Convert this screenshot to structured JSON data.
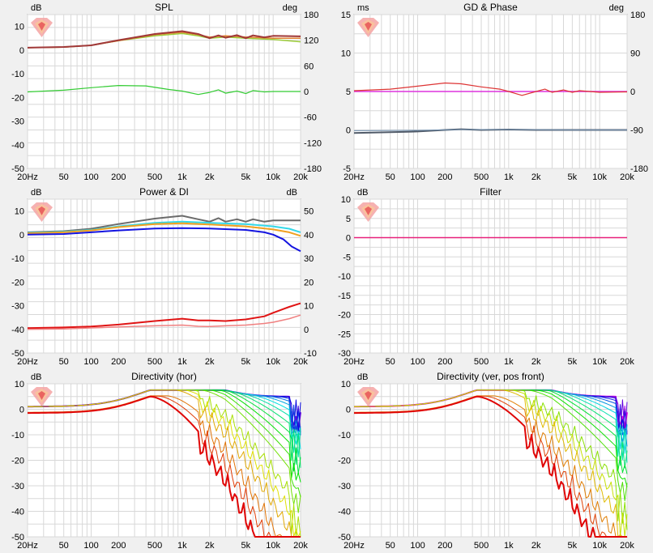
{
  "x_ticks": [
    "20Hz",
    "50",
    "100",
    "200",
    "500",
    "1k",
    "2k",
    "5k",
    "10k",
    "20k"
  ],
  "logo_colors": [
    "#f4a3a3",
    "#f9c49b",
    "#e85a5a"
  ],
  "chart_data": [
    {
      "id": "spl",
      "type": "line",
      "title": "SPL",
      "ylabel": "dB",
      "y2label": "deg",
      "xlim": [
        20,
        20000
      ],
      "xscale": "log",
      "ylim": [
        -50,
        15
      ],
      "y_ticks": [
        10,
        0,
        -10,
        -20,
        -30,
        -40,
        -50
      ],
      "y2lim": [
        -180,
        180
      ],
      "y2_ticks": [
        180,
        120,
        60,
        0,
        -60,
        -120,
        -180
      ],
      "grid": true,
      "series": [
        {
          "color": "#9ccc3a",
          "width": 1.5,
          "values": [
            [
              20,
              1
            ],
            [
              50,
              1.2
            ],
            [
              100,
              2
            ],
            [
              200,
              4
            ],
            [
              500,
              6
            ],
            [
              1000,
              7
            ],
            [
              1500,
              6
            ],
            [
              2000,
              5
            ],
            [
              3000,
              5.5
            ],
            [
              5000,
              5
            ],
            [
              10000,
              4.5
            ],
            [
              20000,
              3.5
            ]
          ]
        },
        {
          "color": "#e08030",
          "width": 1.5,
          "values": [
            [
              20,
              1
            ],
            [
              50,
              1.2
            ],
            [
              100,
              2
            ],
            [
              200,
              4
            ],
            [
              500,
              6.5
            ],
            [
              1000,
              7.5
            ],
            [
              1500,
              6.5
            ],
            [
              2000,
              5.5
            ],
            [
              3000,
              6
            ],
            [
              5000,
              5.5
            ],
            [
              10000,
              5
            ],
            [
              20000,
              5
            ]
          ]
        },
        {
          "color": "#a03838",
          "width": 2,
          "values": [
            [
              20,
              1
            ],
            [
              50,
              1.3
            ],
            [
              100,
              2
            ],
            [
              200,
              4.2
            ],
            [
              500,
              6.8
            ],
            [
              1000,
              8
            ],
            [
              1500,
              6.8
            ],
            [
              2000,
              5
            ],
            [
              2500,
              6.2
            ],
            [
              3000,
              5.2
            ],
            [
              4000,
              6.3
            ],
            [
              5000,
              5
            ],
            [
              6000,
              6.2
            ],
            [
              8000,
              5.4
            ],
            [
              10000,
              6
            ],
            [
              20000,
              5.8
            ]
          ]
        },
        {
          "color": "#33cc33",
          "width": 1.2,
          "axis": "right",
          "values": [
            [
              20,
              -1
            ],
            [
              50,
              3
            ],
            [
              100,
              9
            ],
            [
              200,
              14
            ],
            [
              400,
              13
            ],
            [
              700,
              5
            ],
            [
              1000,
              1
            ],
            [
              1500,
              -7
            ],
            [
              2000,
              -2
            ],
            [
              2500,
              4
            ],
            [
              3000,
              -4
            ],
            [
              4000,
              1
            ],
            [
              5000,
              -5
            ],
            [
              6000,
              2
            ],
            [
              8000,
              -1
            ],
            [
              10000,
              0
            ],
            [
              20000,
              0
            ]
          ]
        }
      ]
    },
    {
      "id": "gd",
      "type": "line",
      "title": "GD & Phase",
      "ylabel": "ms",
      "y2label": "deg",
      "xlim": [
        20,
        20000
      ],
      "xscale": "log",
      "ylim": [
        -5,
        15
      ],
      "y_ticks": [
        15,
        10,
        5,
        0,
        -5
      ],
      "y2lim": [
        -180,
        180
      ],
      "y2_ticks": [
        180,
        90,
        0,
        -90,
        -180
      ],
      "grid": true,
      "series": [
        {
          "color": "#dd33dd",
          "width": 1.5,
          "values": [
            [
              20,
              5
            ],
            [
              20000,
              5
            ]
          ]
        },
        {
          "color": "#dd3333",
          "width": 1.2,
          "values": [
            [
              20,
              5.1
            ],
            [
              50,
              5.3
            ],
            [
              100,
              5.7
            ],
            [
              200,
              6.1
            ],
            [
              300,
              6.0
            ],
            [
              500,
              5.6
            ],
            [
              800,
              5.3
            ],
            [
              1000,
              5
            ],
            [
              1400,
              4.5
            ],
            [
              2000,
              5
            ],
            [
              2500,
              5.3
            ],
            [
              3000,
              4.9
            ],
            [
              4000,
              5.2
            ],
            [
              5000,
              4.9
            ],
            [
              6000,
              5.1
            ],
            [
              10000,
              4.9
            ],
            [
              20000,
              4.95
            ]
          ]
        },
        {
          "color": "#505a68",
          "width": 2,
          "values": [
            [
              20,
              -0.4
            ],
            [
              50,
              -0.3
            ],
            [
              100,
              -0.2
            ],
            [
              200,
              0
            ],
            [
              300,
              0.1
            ],
            [
              500,
              0
            ],
            [
              1000,
              0.05
            ],
            [
              2000,
              0
            ],
            [
              5000,
              0
            ],
            [
              10000,
              0
            ],
            [
              20000,
              0
            ]
          ]
        },
        {
          "color": "#7090b0",
          "width": 1,
          "values": [
            [
              20,
              -0.1
            ],
            [
              100,
              -0.05
            ],
            [
              300,
              0.05
            ],
            [
              1000,
              0.05
            ],
            [
              5000,
              0
            ],
            [
              20000,
              0
            ]
          ]
        }
      ]
    },
    {
      "id": "power",
      "type": "line",
      "title": "Power & DI",
      "ylabel": "dB",
      "y2label": "dB",
      "xlim": [
        20,
        20000
      ],
      "xscale": "log",
      "ylim": [
        -50,
        15
      ],
      "y_ticks": [
        10,
        0,
        -10,
        -20,
        -30,
        -40,
        -50
      ],
      "y2lim": [
        -10,
        55
      ],
      "y2_ticks": [
        50,
        40,
        30,
        20,
        10,
        0,
        -10
      ],
      "grid": true,
      "series": [
        {
          "color": "#6b6b6b",
          "width": 2,
          "values": [
            [
              20,
              1
            ],
            [
              50,
              1.5
            ],
            [
              100,
              2.5
            ],
            [
              200,
              4.5
            ],
            [
              500,
              6.8
            ],
            [
              1000,
              8
            ],
            [
              1500,
              6.5
            ],
            [
              2000,
              5.5
            ],
            [
              2500,
              7
            ],
            [
              3000,
              5.5
            ],
            [
              4000,
              6.5
            ],
            [
              5000,
              5.5
            ],
            [
              6000,
              6.5
            ],
            [
              8000,
              5.5
            ],
            [
              10000,
              6
            ],
            [
              20000,
              6
            ]
          ]
        },
        {
          "color": "#33d8e8",
          "width": 2,
          "values": [
            [
              20,
              0.8
            ],
            [
              50,
              1.2
            ],
            [
              100,
              2
            ],
            [
              200,
              3.5
            ],
            [
              500,
              5
            ],
            [
              1000,
              5.5
            ],
            [
              2000,
              5
            ],
            [
              5000,
              4.5
            ],
            [
              10000,
              3.5
            ],
            [
              15000,
              2.5
            ],
            [
              20000,
              1
            ]
          ]
        },
        {
          "color": "#f0a020",
          "width": 2,
          "values": [
            [
              20,
              0.6
            ],
            [
              50,
              1
            ],
            [
              100,
              1.8
            ],
            [
              200,
              3.2
            ],
            [
              500,
              4.5
            ],
            [
              1000,
              4.8
            ],
            [
              2000,
              4.3
            ],
            [
              5000,
              3.5
            ],
            [
              10000,
              2.2
            ],
            [
              15000,
              1
            ],
            [
              20000,
              -0.5
            ]
          ]
        },
        {
          "color": "#1414e0",
          "width": 2,
          "values": [
            [
              20,
              0
            ],
            [
              50,
              0.3
            ],
            [
              100,
              1
            ],
            [
              200,
              1.8
            ],
            [
              500,
              2.6
            ],
            [
              1000,
              2.8
            ],
            [
              2000,
              2.6
            ],
            [
              5000,
              2
            ],
            [
              8000,
              1
            ],
            [
              10000,
              0
            ],
            [
              13000,
              -2
            ],
            [
              16000,
              -5
            ],
            [
              20000,
              -7
            ]
          ]
        },
        {
          "color": "#e01414",
          "width": 2,
          "axis": "right",
          "values": [
            [
              20,
              0.5
            ],
            [
              50,
              0.8
            ],
            [
              100,
              1.2
            ],
            [
              200,
              2
            ],
            [
              500,
              3.5
            ],
            [
              1000,
              4.5
            ],
            [
              1500,
              3.8
            ],
            [
              2000,
              3.8
            ],
            [
              3000,
              3.5
            ],
            [
              5000,
              4.2
            ],
            [
              8000,
              5.5
            ],
            [
              10000,
              7
            ],
            [
              15000,
              9.5
            ],
            [
              20000,
              11
            ]
          ]
        },
        {
          "color": "#f08080",
          "width": 1.5,
          "axis": "right",
          "values": [
            [
              20,
              0
            ],
            [
              50,
              0.2
            ],
            [
              100,
              0.6
            ],
            [
              200,
              1
            ],
            [
              500,
              1.5
            ],
            [
              1000,
              1.8
            ],
            [
              1500,
              1.3
            ],
            [
              2000,
              1.2
            ],
            [
              3000,
              1.5
            ],
            [
              5000,
              1.8
            ],
            [
              8000,
              2.5
            ],
            [
              10000,
              3
            ],
            [
              15000,
              4.5
            ],
            [
              20000,
              6
            ]
          ]
        }
      ]
    },
    {
      "id": "filter",
      "type": "line",
      "title": "Filter",
      "ylabel": "dB",
      "y2label": "",
      "xlim": [
        20,
        20000
      ],
      "xscale": "log",
      "ylim": [
        -30,
        10
      ],
      "y_ticks": [
        10,
        5,
        0,
        -5,
        -10,
        -15,
        -20,
        -25,
        -30
      ],
      "grid": true,
      "series": [
        {
          "color": "#e8207a",
          "width": 1.5,
          "values": [
            [
              20,
              0
            ],
            [
              20000,
              0
            ]
          ]
        }
      ]
    },
    {
      "id": "dir_h",
      "type": "line",
      "title": "Directivity (hor)",
      "ylabel": "dB",
      "y2label": "",
      "xlim": [
        20,
        20000
      ],
      "xscale": "log",
      "ylim": [
        -50,
        10
      ],
      "y_ticks": [
        10,
        0,
        -10,
        -20,
        -30,
        -40,
        -50
      ],
      "grid": true,
      "family": {
        "count": 19,
        "hue_start": 270,
        "hue_end": 0,
        "base_peak": 7.5,
        "off_axis_drop": 1.05,
        "start_low": 2.5,
        "nulls": true
      },
      "series": []
    },
    {
      "id": "dir_v",
      "type": "line",
      "title": "Directivity (ver, pos front)",
      "ylabel": "dB",
      "y2label": "",
      "xlim": [
        20,
        20000
      ],
      "xscale": "log",
      "ylim": [
        -50,
        10
      ],
      "y_ticks": [
        10,
        0,
        -10,
        -20,
        -30,
        -40,
        -50
      ],
      "grid": true,
      "family": {
        "count": 19,
        "hue_start": 300,
        "hue_end": 0,
        "base_peak": 7.5,
        "off_axis_drop": 0.9,
        "start_low": 2.5,
        "nulls": true
      },
      "series": []
    }
  ]
}
